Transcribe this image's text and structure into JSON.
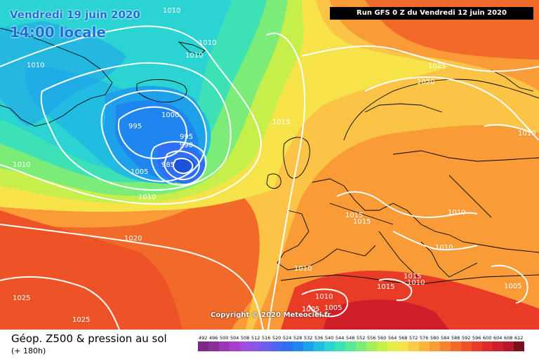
{
  "header": {
    "date": "Vendredi 19 juin 2020",
    "time": "14:00 locale",
    "run": "Run GFS 0 Z du Vendredi 12 juin 2020"
  },
  "copyright": "Copyright © 2020 Meteociel.fr",
  "legend": {
    "title": "Géop. Z500 & pression au sol",
    "subtitle": "(+ 180h)",
    "scale": [
      {
        "v": "492",
        "c": "#7a2a82"
      },
      {
        "v": "496",
        "c": "#8a2f9a"
      },
      {
        "v": "500",
        "c": "#9b37b4"
      },
      {
        "v": "504",
        "c": "#a63fcc"
      },
      {
        "v": "508",
        "c": "#9e4ee0"
      },
      {
        "v": "512",
        "c": "#8a56e8"
      },
      {
        "v": "516",
        "c": "#6b5fef"
      },
      {
        "v": "520",
        "c": "#4a66f2"
      },
      {
        "v": "524",
        "c": "#2f6ff3"
      },
      {
        "v": "528",
        "c": "#1f86f0"
      },
      {
        "v": "532",
        "c": "#1fa0ea"
      },
      {
        "v": "536",
        "c": "#22bbe2"
      },
      {
        "v": "540",
        "c": "#2cd3d3"
      },
      {
        "v": "544",
        "c": "#3ee0b6"
      },
      {
        "v": "548",
        "c": "#58e898"
      },
      {
        "v": "552",
        "c": "#7cec78"
      },
      {
        "v": "556",
        "c": "#a2ee5c"
      },
      {
        "v": "560",
        "c": "#c6ef4b"
      },
      {
        "v": "564",
        "c": "#e4ee48"
      },
      {
        "v": "568",
        "c": "#f6e34a"
      },
      {
        "v": "572",
        "c": "#fbcd46"
      },
      {
        "v": "576",
        "c": "#fbb43e"
      },
      {
        "v": "580",
        "c": "#f99b36"
      },
      {
        "v": "584",
        "c": "#f6822f"
      },
      {
        "v": "588",
        "c": "#f26a2a"
      },
      {
        "v": "592",
        "c": "#ee5328"
      },
      {
        "v": "596",
        "c": "#e83c27"
      },
      {
        "v": "600",
        "c": "#de2a28"
      },
      {
        "v": "604",
        "c": "#cf1f2a"
      },
      {
        "v": "608",
        "c": "#b4182a"
      },
      {
        "v": "612",
        "c": "#7a1020"
      }
    ]
  },
  "isobars": [
    "1010",
    "1010",
    "1010",
    "1010",
    "1000",
    "995",
    "995",
    "990",
    "985",
    "1005",
    "1010",
    "1015",
    "1025",
    "1020",
    "1010",
    "1010",
    "1020",
    "1025",
    "1025",
    "1015",
    "1015",
    "1010",
    "1010",
    "1010",
    "1010",
    "1005",
    "1005",
    "1015",
    "1015",
    "1005",
    "1010"
  ],
  "colors": {
    "label_box": "#000000",
    "title": "#1a6fd8"
  }
}
